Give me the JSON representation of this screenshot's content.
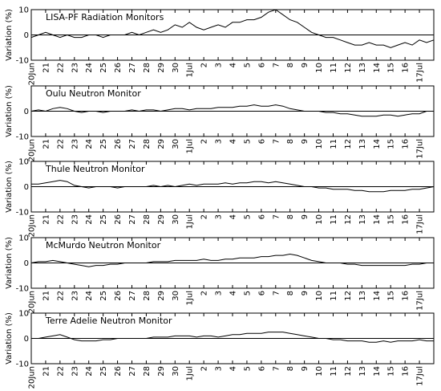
{
  "chart_data": [
    {
      "type": "line",
      "title": "LISA-PF Radiation Monitors",
      "ylabel": "Variation (%)",
      "color": "#000000",
      "xlim": [
        0,
        28
      ],
      "ylim": [
        -10,
        10
      ],
      "yticks": [
        -10,
        0,
        10
      ],
      "xticks": [
        {
          "value": 0,
          "label": "20Jun"
        },
        {
          "value": 1,
          "label": "21"
        },
        {
          "value": 2,
          "label": "22"
        },
        {
          "value": 3,
          "label": "23"
        },
        {
          "value": 4,
          "label": "24"
        },
        {
          "value": 5,
          "label": "25"
        },
        {
          "value": 6,
          "label": "26"
        },
        {
          "value": 7,
          "label": "27"
        },
        {
          "value": 8,
          "label": "28"
        },
        {
          "value": 9,
          "label": "29"
        },
        {
          "value": 10,
          "label": "30"
        },
        {
          "value": 11,
          "label": "1Jul"
        },
        {
          "value": 12,
          "label": "2"
        },
        {
          "value": 13,
          "label": "3"
        },
        {
          "value": 14,
          "label": "4"
        },
        {
          "value": 15,
          "label": "5"
        },
        {
          "value": 16,
          "label": "6"
        },
        {
          "value": 17,
          "label": "7"
        },
        {
          "value": 18,
          "label": "8"
        },
        {
          "value": 19,
          "label": "9"
        },
        {
          "value": 20,
          "label": "10"
        },
        {
          "value": 21,
          "label": "11"
        },
        {
          "value": 22,
          "label": "12"
        },
        {
          "value": 23,
          "label": "13"
        },
        {
          "value": 24,
          "label": "14"
        },
        {
          "value": 25,
          "label": "15"
        },
        {
          "value": 26,
          "label": "16"
        },
        {
          "value": 27,
          "label": "17Jul"
        }
      ],
      "x": [
        0,
        0.5,
        1,
        1.5,
        2,
        2.5,
        3,
        3.5,
        4,
        4.5,
        5,
        5.5,
        6,
        6.5,
        7,
        7.5,
        8,
        8.5,
        9,
        9.5,
        10,
        10.5,
        11,
        11.5,
        12,
        12.5,
        13,
        13.5,
        14,
        14.5,
        15,
        15.5,
        16,
        16.5,
        17,
        17.5,
        18,
        18.5,
        19,
        19.5,
        20,
        20.5,
        21,
        21.5,
        22,
        22.5,
        23,
        23.5,
        24,
        24.5,
        25,
        25.5,
        26,
        26.5,
        27,
        27.5,
        28
      ],
      "values": [
        -1,
        0,
        1,
        0,
        -1,
        0,
        -1,
        -1,
        0,
        0,
        -1,
        0,
        0,
        0,
        1,
        0,
        1,
        2,
        1,
        2,
        4,
        3,
        5,
        3,
        2,
        3,
        4,
        3,
        5,
        5,
        6,
        6,
        7,
        9,
        10,
        8,
        6,
        5,
        3,
        1,
        0,
        -1,
        -1,
        -2,
        -3,
        -4,
        -4,
        -3,
        -4,
        -4,
        -5,
        -4,
        -3,
        -4,
        -2,
        -3,
        -2
      ]
    },
    {
      "type": "line",
      "title": "Oulu Neutron Monitor",
      "ylabel": "Variation (%)",
      "color": "#000000",
      "xlim": [
        0,
        28
      ],
      "ylim": [
        -10,
        10
      ],
      "yticks": [
        -10,
        0
      ],
      "xticks": [
        {
          "value": 0,
          "label": "20Jun"
        },
        {
          "value": 1,
          "label": "21"
        },
        {
          "value": 2,
          "label": "22"
        },
        {
          "value": 3,
          "label": "23"
        },
        {
          "value": 4,
          "label": "24"
        },
        {
          "value": 5,
          "label": "25"
        },
        {
          "value": 6,
          "label": "26"
        },
        {
          "value": 7,
          "label": "27"
        },
        {
          "value": 8,
          "label": "28"
        },
        {
          "value": 9,
          "label": "29"
        },
        {
          "value": 10,
          "label": "30"
        },
        {
          "value": 11,
          "label": "1Jul"
        },
        {
          "value": 12,
          "label": "2"
        },
        {
          "value": 13,
          "label": "3"
        },
        {
          "value": 14,
          "label": "4"
        },
        {
          "value": 15,
          "label": "5"
        },
        {
          "value": 16,
          "label": "6"
        },
        {
          "value": 17,
          "label": "7"
        },
        {
          "value": 18,
          "label": "8"
        },
        {
          "value": 19,
          "label": "9"
        },
        {
          "value": 20,
          "label": "10"
        },
        {
          "value": 21,
          "label": "11"
        },
        {
          "value": 22,
          "label": "12"
        },
        {
          "value": 23,
          "label": "13"
        },
        {
          "value": 24,
          "label": "14"
        },
        {
          "value": 25,
          "label": "15"
        },
        {
          "value": 26,
          "label": "16"
        },
        {
          "value": 27,
          "label": "17Jul"
        }
      ],
      "x": [
        0,
        0.5,
        1,
        1.5,
        2,
        2.5,
        3,
        3.5,
        4,
        4.5,
        5,
        5.5,
        6,
        6.5,
        7,
        7.5,
        8,
        8.5,
        9,
        9.5,
        10,
        10.5,
        11,
        11.5,
        12,
        12.5,
        13,
        13.5,
        14,
        14.5,
        15,
        15.5,
        16,
        16.5,
        17,
        17.5,
        18,
        18.5,
        19,
        19.5,
        20,
        20.5,
        21,
        21.5,
        22,
        22.5,
        23,
        23.5,
        24,
        24.5,
        25,
        25.5,
        26,
        26.5,
        27,
        27.5,
        28
      ],
      "values": [
        0,
        0.5,
        0,
        1,
        1.5,
        1,
        0,
        -0.5,
        0,
        0,
        -0.5,
        0,
        0,
        0,
        0.5,
        0,
        0.5,
        0.5,
        0,
        0.5,
        1,
        1,
        0.5,
        1,
        1,
        1,
        1.5,
        1.5,
        1.5,
        2,
        2,
        2.5,
        2,
        2,
        2.5,
        2,
        1,
        0.5,
        0,
        0,
        0,
        -0.5,
        -0.5,
        -1,
        -1,
        -1.5,
        -2,
        -2,
        -2,
        -1.5,
        -1.5,
        -2,
        -1.5,
        -1,
        -1,
        0,
        0
      ]
    },
    {
      "type": "line",
      "title": "Thule Neutron Monitor",
      "ylabel": "Variation (%)",
      "color": "#000000",
      "xlim": [
        0,
        28
      ],
      "ylim": [
        -10,
        10
      ],
      "yticks": [
        -10,
        0,
        10
      ],
      "xticks": [
        {
          "value": 0,
          "label": "20Jun"
        },
        {
          "value": 1,
          "label": "21"
        },
        {
          "value": 2,
          "label": "22"
        },
        {
          "value": 3,
          "label": "23"
        },
        {
          "value": 4,
          "label": "24"
        },
        {
          "value": 5,
          "label": "25"
        },
        {
          "value": 6,
          "label": "26"
        },
        {
          "value": 7,
          "label": "27"
        },
        {
          "value": 8,
          "label": "28"
        },
        {
          "value": 9,
          "label": "29"
        },
        {
          "value": 10,
          "label": "30"
        },
        {
          "value": 11,
          "label": "1Jul"
        },
        {
          "value": 12,
          "label": "2"
        },
        {
          "value": 13,
          "label": "3"
        },
        {
          "value": 14,
          "label": "4"
        },
        {
          "value": 15,
          "label": "5"
        },
        {
          "value": 16,
          "label": "6"
        },
        {
          "value": 17,
          "label": "7"
        },
        {
          "value": 18,
          "label": "8"
        },
        {
          "value": 19,
          "label": "9"
        },
        {
          "value": 20,
          "label": "10"
        },
        {
          "value": 21,
          "label": "11"
        },
        {
          "value": 22,
          "label": "12"
        },
        {
          "value": 23,
          "label": "13"
        },
        {
          "value": 24,
          "label": "14"
        },
        {
          "value": 25,
          "label": "15"
        },
        {
          "value": 26,
          "label": "16"
        },
        {
          "value": 27,
          "label": "17Jul"
        }
      ],
      "x": [
        0,
        0.5,
        1,
        1.5,
        2,
        2.5,
        3,
        3.5,
        4,
        4.5,
        5,
        5.5,
        6,
        6.5,
        7,
        7.5,
        8,
        8.5,
        9,
        9.5,
        10,
        10.5,
        11,
        11.5,
        12,
        12.5,
        13,
        13.5,
        14,
        14.5,
        15,
        15.5,
        16,
        16.5,
        17,
        17.5,
        18,
        18.5,
        19,
        19.5,
        20,
        20.5,
        21,
        21.5,
        22,
        22.5,
        23,
        23.5,
        24,
        24.5,
        25,
        25.5,
        26,
        26.5,
        27,
        27.5,
        28
      ],
      "values": [
        1,
        1,
        1.5,
        2,
        2.5,
        2,
        0.5,
        0,
        -0.5,
        0,
        0,
        0,
        -0.5,
        0,
        0,
        0,
        0,
        0.5,
        0,
        0.5,
        0,
        0.5,
        1,
        0.5,
        1,
        1,
        1,
        1.5,
        1,
        1.5,
        1.5,
        2,
        2,
        1.5,
        2,
        1.5,
        1,
        0.5,
        0,
        0,
        -0.5,
        -0.5,
        -1,
        -1,
        -1,
        -1.5,
        -1.5,
        -2,
        -2,
        -2,
        -1.5,
        -1.5,
        -1.5,
        -1,
        -1,
        -0.5,
        0
      ]
    },
    {
      "type": "line",
      "title": "McMurdo Neutron Monitor",
      "ylabel": "Variation (%)",
      "color": "#000000",
      "xlim": [
        0,
        28
      ],
      "ylim": [
        -10,
        10
      ],
      "yticks": [
        -10,
        0,
        10
      ],
      "xticks": [
        {
          "value": 0,
          "label": "20Jun"
        },
        {
          "value": 1,
          "label": "21"
        },
        {
          "value": 2,
          "label": "22"
        },
        {
          "value": 3,
          "label": "23"
        },
        {
          "value": 4,
          "label": "24"
        },
        {
          "value": 5,
          "label": "25"
        },
        {
          "value": 6,
          "label": "26"
        },
        {
          "value": 7,
          "label": "27"
        },
        {
          "value": 8,
          "label": "28"
        },
        {
          "value": 9,
          "label": "29"
        },
        {
          "value": 10,
          "label": "30"
        },
        {
          "value": 11,
          "label": "1Jul"
        },
        {
          "value": 12,
          "label": "2"
        },
        {
          "value": 13,
          "label": "3"
        },
        {
          "value": 14,
          "label": "4"
        },
        {
          "value": 15,
          "label": "5"
        },
        {
          "value": 16,
          "label": "6"
        },
        {
          "value": 17,
          "label": "7"
        },
        {
          "value": 18,
          "label": "8"
        },
        {
          "value": 19,
          "label": "9"
        },
        {
          "value": 20,
          "label": "10"
        },
        {
          "value": 21,
          "label": "11"
        },
        {
          "value": 22,
          "label": "12"
        },
        {
          "value": 23,
          "label": "13"
        },
        {
          "value": 24,
          "label": "14"
        },
        {
          "value": 25,
          "label": "15"
        },
        {
          "value": 26,
          "label": "16"
        },
        {
          "value": 27,
          "label": "17Jul"
        }
      ],
      "x": [
        0,
        0.5,
        1,
        1.5,
        2,
        2.5,
        3,
        3.5,
        4,
        4.5,
        5,
        5.5,
        6,
        6.5,
        7,
        7.5,
        8,
        8.5,
        9,
        9.5,
        10,
        10.5,
        11,
        11.5,
        12,
        12.5,
        13,
        13.5,
        14,
        14.5,
        15,
        15.5,
        16,
        16.5,
        17,
        17.5,
        18,
        18.5,
        19,
        19.5,
        20,
        20.5,
        21,
        21.5,
        22,
        22.5,
        23,
        23.5,
        24,
        24.5,
        25,
        25.5,
        26,
        26.5,
        27,
        27.5,
        28
      ],
      "values": [
        0,
        0.5,
        0.5,
        1,
        0.5,
        0,
        -0.5,
        -1,
        -1.5,
        -1,
        -1,
        -0.5,
        -0.5,
        0,
        0,
        0,
        0,
        0.5,
        0.5,
        0.5,
        1,
        1,
        1,
        1,
        1.5,
        1,
        1,
        1.5,
        1.5,
        2,
        2,
        2,
        2.5,
        2.5,
        3,
        3,
        3.5,
        3,
        2,
        1,
        0.5,
        0,
        0,
        0,
        -0.5,
        -0.5,
        -1,
        -1,
        -1,
        -1,
        -1,
        -1,
        -1,
        -0.5,
        -0.5,
        0,
        0
      ]
    },
    {
      "type": "line",
      "title": "Terre Adelie Neutron Monitor",
      "ylabel": "Variation (%)",
      "color": "#000000",
      "xlim": [
        0,
        28
      ],
      "ylim": [
        -10,
        10
      ],
      "yticks": [
        -10,
        0,
        10
      ],
      "xticks": [
        {
          "value": 0,
          "label": "20Jun"
        },
        {
          "value": 1,
          "label": "21"
        },
        {
          "value": 2,
          "label": "22"
        },
        {
          "value": 3,
          "label": "23"
        },
        {
          "value": 4,
          "label": "24"
        },
        {
          "value": 5,
          "label": "25"
        },
        {
          "value": 6,
          "label": "26"
        },
        {
          "value": 7,
          "label": "27"
        },
        {
          "value": 8,
          "label": "28"
        },
        {
          "value": 9,
          "label": "29"
        },
        {
          "value": 10,
          "label": "30"
        },
        {
          "value": 11,
          "label": "1Jul"
        },
        {
          "value": 12,
          "label": "2"
        },
        {
          "value": 13,
          "label": "3"
        },
        {
          "value": 14,
          "label": "4"
        },
        {
          "value": 15,
          "label": "5"
        },
        {
          "value": 16,
          "label": "6"
        },
        {
          "value": 17,
          "label": "7"
        },
        {
          "value": 18,
          "label": "8"
        },
        {
          "value": 19,
          "label": "9"
        },
        {
          "value": 20,
          "label": "10"
        },
        {
          "value": 21,
          "label": "11"
        },
        {
          "value": 22,
          "label": "12"
        },
        {
          "value": 23,
          "label": "13"
        },
        {
          "value": 24,
          "label": "14"
        },
        {
          "value": 25,
          "label": "15"
        },
        {
          "value": 26,
          "label": "16"
        },
        {
          "value": 27,
          "label": "17Jul"
        }
      ],
      "x": [
        0,
        0.5,
        1,
        1.5,
        2,
        2.5,
        3,
        3.5,
        4,
        4.5,
        5,
        5.5,
        6,
        6.5,
        7,
        7.5,
        8,
        8.5,
        9,
        9.5,
        10,
        10.5,
        11,
        11.5,
        12,
        12.5,
        13,
        13.5,
        14,
        14.5,
        15,
        15.5,
        16,
        16.5,
        17,
        17.5,
        18,
        18.5,
        19,
        19.5,
        20,
        20.5,
        21,
        21.5,
        22,
        22.5,
        23,
        23.5,
        24,
        24.5,
        25,
        25.5,
        26,
        26.5,
        27,
        27.5,
        28
      ],
      "values": [
        0,
        0,
        0.5,
        1,
        1.5,
        0.5,
        -0.5,
        -1,
        -1,
        -1,
        -0.5,
        -0.5,
        0,
        0,
        0,
        0,
        0,
        0.5,
        0.5,
        0.5,
        1,
        1,
        1,
        0.5,
        1,
        1,
        0.5,
        1,
        1.5,
        1.5,
        2,
        2,
        2,
        2.5,
        2.5,
        2.5,
        2,
        1.5,
        1,
        0.5,
        0,
        0,
        -0.5,
        -0.5,
        -1,
        -1,
        -1,
        -1.5,
        -1.5,
        -1,
        -1.5,
        -1,
        -1,
        -1,
        -0.5,
        -1,
        -1
      ]
    }
  ]
}
